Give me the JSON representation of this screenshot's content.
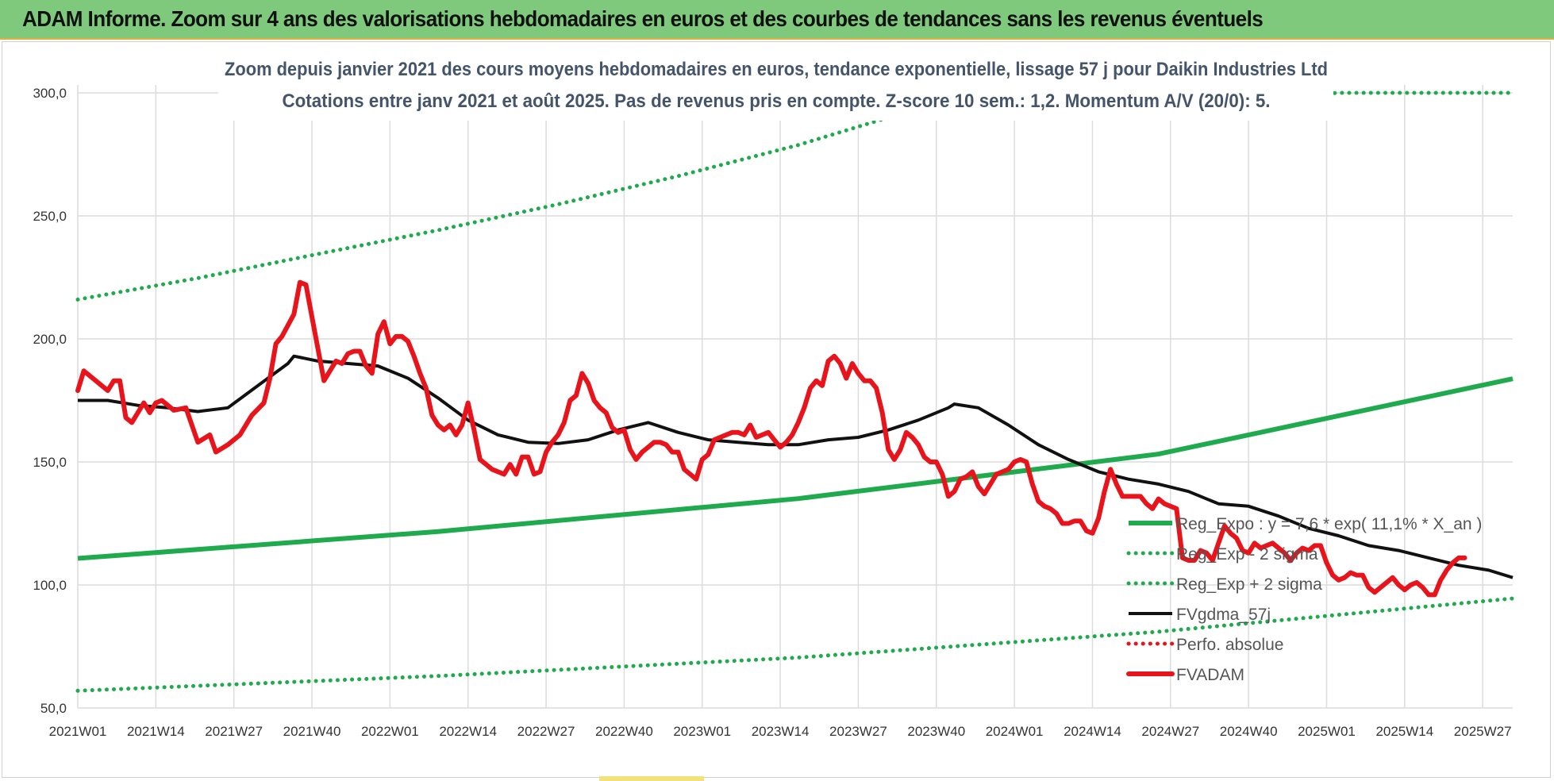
{
  "header": {
    "title": "ADAM Informe. Zoom sur 4 ans des valorisations hebdomadaires en euros et des courbes de tendances sans les revenus éventuels"
  },
  "colors": {
    "banner": "#7ec97b",
    "green": "#1faa4e",
    "black": "#111111",
    "red": "#e8141c",
    "grid": "#dcdcdc"
  },
  "chart_data": {
    "type": "line",
    "title": [
      "Zoom depuis janvier 2021 des cours moyens hebdomadaires en euros, tendance exponentielle, lissage 57 j pour Daikin Industries Ltd",
      "Cotations entre janv 2021 et août 2025. Pas de revenus pris en compte. Z-score 10 sem.: 1,2. Momentum A/V (20/0): 5."
    ],
    "xlabel": "",
    "ylabel": "",
    "x_ticks": [
      "2021W01",
      "2021W14",
      "2021W27",
      "2021W40",
      "2022W01",
      "2022W14",
      "2022W27",
      "2022W40",
      "2023W01",
      "2023W14",
      "2023W27",
      "2023W40",
      "2024W01",
      "2024W14",
      "2024W27",
      "2024W40",
      "2025W01",
      "2025W14",
      "2025W27"
    ],
    "y_ticks": [
      "50,0",
      "100,0",
      "150,0",
      "200,0",
      "250,0",
      "300,0"
    ],
    "ylim": [
      50,
      300
    ],
    "x_range_weeks": [
      0,
      239
    ],
    "legend_position": "right",
    "grid": true,
    "series": [
      {
        "name": "Reg_Expo : y = 7,6 * exp( 11,1% *  X_an )",
        "style": "solid",
        "color": "#1faa4e",
        "points": [
          [
            0,
            110.8
          ],
          [
            60,
            121.7
          ],
          [
            120,
            135.1
          ],
          [
            180,
            153.2
          ],
          [
            239,
            183.8
          ]
        ]
      },
      {
        "name": "Reg_Exp - 2 sigma",
        "style": "dotted",
        "color": "#1faa4e",
        "points": [
          [
            0,
            57
          ],
          [
            60,
            63
          ],
          [
            120,
            70.5
          ],
          [
            180,
            81
          ],
          [
            239,
            94.5
          ]
        ]
      },
      {
        "name": "Reg_Exp + 2 sigma",
        "style": "dotted",
        "color": "#1faa4e",
        "points": [
          [
            0,
            216
          ],
          [
            20,
            224.7
          ],
          [
            40,
            234.5
          ],
          [
            60,
            244.2
          ],
          [
            80,
            254.7
          ],
          [
            100,
            266.2
          ],
          [
            120,
            278.8
          ],
          [
            135,
            290
          ],
          [
            210,
            300
          ],
          [
            239,
            300
          ]
        ]
      },
      {
        "name": "FVgdma_57j",
        "style": "solid",
        "color": "#111111",
        "points": [
          [
            0,
            175
          ],
          [
            5,
            175
          ],
          [
            10,
            173
          ],
          [
            15,
            172
          ],
          [
            20,
            170.5
          ],
          [
            25,
            172
          ],
          [
            30,
            181
          ],
          [
            35,
            190
          ],
          [
            36,
            193
          ],
          [
            40,
            191
          ],
          [
            45,
            190
          ],
          [
            50,
            189
          ],
          [
            55,
            184
          ],
          [
            60,
            176
          ],
          [
            65,
            167
          ],
          [
            70,
            161
          ],
          [
            75,
            158
          ],
          [
            80,
            157.5
          ],
          [
            85,
            159
          ],
          [
            90,
            163
          ],
          [
            95,
            166
          ],
          [
            100,
            162
          ],
          [
            105,
            159
          ],
          [
            110,
            158
          ],
          [
            115,
            157
          ],
          [
            120,
            157
          ],
          [
            125,
            159
          ],
          [
            130,
            160
          ],
          [
            135,
            163
          ],
          [
            140,
            167
          ],
          [
            145,
            172
          ],
          [
            146,
            173.5
          ],
          [
            150,
            172
          ],
          [
            155,
            165
          ],
          [
            160,
            157
          ],
          [
            165,
            151
          ],
          [
            170,
            146
          ],
          [
            175,
            143
          ],
          [
            180,
            141
          ],
          [
            185,
            138
          ],
          [
            190,
            133
          ],
          [
            195,
            132
          ],
          [
            200,
            128
          ],
          [
            205,
            123
          ],
          [
            210,
            120
          ],
          [
            215,
            116
          ],
          [
            220,
            114
          ],
          [
            225,
            111
          ],
          [
            230,
            108
          ],
          [
            235,
            106
          ],
          [
            239,
            103
          ]
        ]
      },
      {
        "name": "Perfo. absolue",
        "style": "dotted",
        "color": "#e8141c",
        "points": []
      },
      {
        "name": "FVADAM",
        "style": "solid",
        "color": "#e8141c",
        "points": [
          [
            0,
            179
          ],
          [
            1,
            187
          ],
          [
            3,
            183
          ],
          [
            5,
            179
          ],
          [
            6,
            183
          ],
          [
            7,
            183
          ],
          [
            8,
            168
          ],
          [
            9,
            166
          ],
          [
            11,
            174
          ],
          [
            12,
            170
          ],
          [
            13,
            174
          ],
          [
            14,
            175
          ],
          [
            16,
            171
          ],
          [
            18,
            172
          ],
          [
            20,
            158
          ],
          [
            22,
            161
          ],
          [
            23,
            154
          ],
          [
            25,
            157
          ],
          [
            27,
            161
          ],
          [
            29,
            169
          ],
          [
            31,
            174
          ],
          [
            32,
            184
          ],
          [
            33,
            198
          ],
          [
            34,
            201
          ],
          [
            36,
            210
          ],
          [
            37,
            223
          ],
          [
            38,
            222
          ],
          [
            39,
            209
          ],
          [
            40,
            196
          ],
          [
            41,
            183
          ],
          [
            42,
            187
          ],
          [
            43,
            191
          ],
          [
            44,
            190
          ],
          [
            45,
            194
          ],
          [
            46,
            195
          ],
          [
            47,
            195
          ],
          [
            48,
            189
          ],
          [
            49,
            186
          ],
          [
            50,
            202
          ],
          [
            51,
            207
          ],
          [
            52,
            198
          ],
          [
            53,
            201
          ],
          [
            54,
            201
          ],
          [
            55,
            199
          ],
          [
            56,
            193
          ],
          [
            57,
            186
          ],
          [
            58,
            180
          ],
          [
            59,
            169
          ],
          [
            60,
            165
          ],
          [
            61,
            163
          ],
          [
            62,
            165
          ],
          [
            63,
            161
          ],
          [
            64,
            165
          ],
          [
            65,
            174
          ],
          [
            66,
            163
          ],
          [
            67,
            151
          ],
          [
            68,
            149
          ],
          [
            69,
            147
          ],
          [
            70,
            146
          ],
          [
            71,
            145
          ],
          [
            72,
            149
          ],
          [
            73,
            145
          ],
          [
            74,
            152
          ],
          [
            75,
            152
          ],
          [
            76,
            145
          ],
          [
            77,
            146
          ],
          [
            78,
            154
          ],
          [
            79,
            158
          ],
          [
            80,
            161
          ],
          [
            81,
            166
          ],
          [
            82,
            175
          ],
          [
            83,
            177
          ],
          [
            84,
            186
          ],
          [
            85,
            182
          ],
          [
            86,
            175
          ],
          [
            87,
            172
          ],
          [
            88,
            170
          ],
          [
            89,
            164
          ],
          [
            90,
            162
          ],
          [
            91,
            163
          ],
          [
            92,
            155
          ],
          [
            93,
            151
          ],
          [
            94,
            154
          ],
          [
            95,
            156
          ],
          [
            96,
            158
          ],
          [
            97,
            158
          ],
          [
            98,
            157
          ],
          [
            99,
            154
          ],
          [
            100,
            154
          ],
          [
            101,
            147
          ],
          [
            102,
            145
          ],
          [
            103,
            143
          ],
          [
            104,
            151
          ],
          [
            105,
            153
          ],
          [
            106,
            159
          ],
          [
            107,
            160
          ],
          [
            108,
            161
          ],
          [
            109,
            162
          ],
          [
            110,
            162
          ],
          [
            111,
            161
          ],
          [
            112,
            165
          ],
          [
            113,
            160
          ],
          [
            114,
            161
          ],
          [
            115,
            162
          ],
          [
            116,
            159
          ],
          [
            117,
            156
          ],
          [
            118,
            158
          ],
          [
            119,
            161
          ],
          [
            120,
            166
          ],
          [
            121,
            172
          ],
          [
            122,
            180
          ],
          [
            123,
            183
          ],
          [
            124,
            181
          ],
          [
            125,
            191
          ],
          [
            126,
            193
          ],
          [
            127,
            190
          ],
          [
            128,
            184
          ],
          [
            129,
            190
          ],
          [
            130,
            186
          ],
          [
            131,
            183
          ],
          [
            132,
            183
          ],
          [
            133,
            180
          ],
          [
            134,
            170
          ],
          [
            135,
            155
          ],
          [
            136,
            151
          ],
          [
            137,
            155
          ],
          [
            138,
            162
          ],
          [
            139,
            160
          ],
          [
            140,
            157
          ],
          [
            141,
            152
          ],
          [
            142,
            150
          ],
          [
            143,
            150
          ],
          [
            144,
            145
          ],
          [
            145,
            136
          ],
          [
            146,
            138
          ],
          [
            147,
            143
          ],
          [
            148,
            144
          ],
          [
            149,
            146
          ],
          [
            150,
            140
          ],
          [
            151,
            137
          ],
          [
            152,
            141
          ],
          [
            153,
            145
          ],
          [
            154,
            146
          ],
          [
            155,
            147
          ],
          [
            156,
            150
          ],
          [
            157,
            151
          ],
          [
            158,
            150
          ],
          [
            159,
            141
          ],
          [
            160,
            134
          ],
          [
            161,
            132
          ],
          [
            162,
            131
          ],
          [
            163,
            129
          ],
          [
            164,
            125
          ],
          [
            165,
            125
          ],
          [
            166,
            126
          ],
          [
            167,
            126
          ],
          [
            168,
            122
          ],
          [
            169,
            121
          ],
          [
            170,
            127
          ],
          [
            171,
            138
          ],
          [
            172,
            147
          ],
          [
            173,
            141
          ],
          [
            174,
            136
          ],
          [
            175,
            136
          ],
          [
            176,
            136
          ],
          [
            177,
            136
          ],
          [
            178,
            133
          ],
          [
            179,
            131
          ],
          [
            180,
            135
          ],
          [
            181,
            133
          ],
          [
            182,
            132
          ],
          [
            183,
            131
          ],
          [
            184,
            111
          ],
          [
            185,
            110
          ],
          [
            186,
            110
          ],
          [
            187,
            114
          ],
          [
            188,
            113
          ],
          [
            189,
            110
          ],
          [
            190,
            117
          ],
          [
            191,
            124
          ],
          [
            192,
            121
          ],
          [
            193,
            119
          ],
          [
            194,
            114
          ],
          [
            195,
            113
          ],
          [
            196,
            117
          ],
          [
            197,
            115
          ],
          [
            198,
            116
          ],
          [
            199,
            117
          ],
          [
            200,
            115
          ],
          [
            201,
            113
          ],
          [
            202,
            110
          ],
          [
            203,
            113
          ],
          [
            204,
            115
          ],
          [
            205,
            114
          ],
          [
            206,
            116
          ],
          [
            207,
            116
          ],
          [
            208,
            109
          ],
          [
            209,
            104
          ],
          [
            210,
            102
          ],
          [
            211,
            103
          ],
          [
            212,
            105
          ],
          [
            213,
            104
          ],
          [
            214,
            104
          ],
          [
            215,
            99
          ],
          [
            216,
            97
          ],
          [
            217,
            99
          ],
          [
            218,
            101
          ],
          [
            219,
            103
          ],
          [
            220,
            100
          ],
          [
            221,
            98
          ],
          [
            222,
            100
          ],
          [
            223,
            101
          ],
          [
            224,
            99
          ],
          [
            225,
            96
          ],
          [
            226,
            96
          ],
          [
            227,
            102
          ],
          [
            228,
            106
          ],
          [
            229,
            109
          ],
          [
            230,
            111
          ],
          [
            231,
            111
          ]
        ]
      }
    ]
  }
}
